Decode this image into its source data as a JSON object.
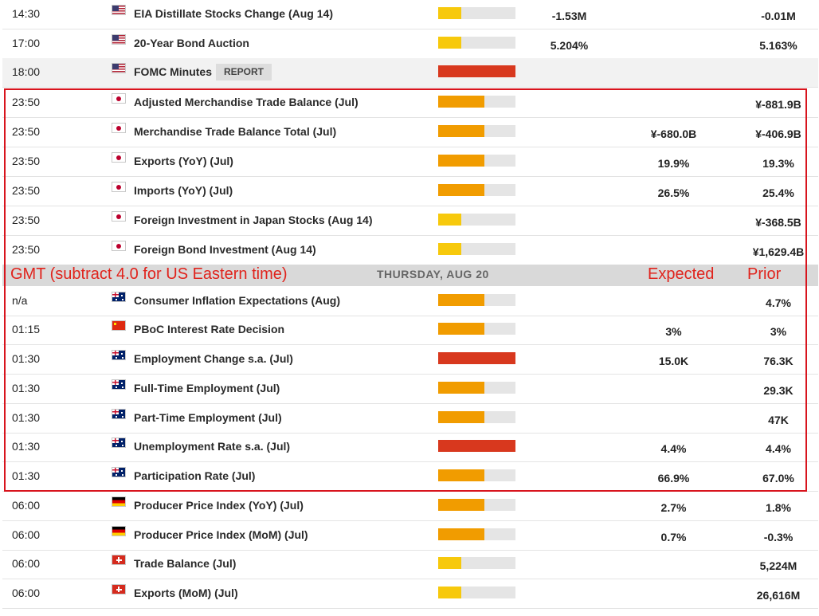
{
  "colors": {
    "importance_high": "#d8381e",
    "importance_medium": "#f19c00",
    "importance_low": "#f7c90c",
    "annotation_red": "#e0231c"
  },
  "events_before": [
    {
      "time": "14:30",
      "flag": "us",
      "name": "EIA Distillate Stocks Change (Aug 14)",
      "tag": "",
      "importance": "low",
      "actual": "-1.53M",
      "forecast": "",
      "prior": "-0.01M"
    },
    {
      "time": "17:00",
      "flag": "us",
      "name": "20-Year Bond Auction",
      "tag": "",
      "importance": "low",
      "actual": "5.204%",
      "forecast": "",
      "prior": "5.163%"
    },
    {
      "time": "18:00",
      "flag": "us",
      "name": "FOMC Minutes",
      "tag": "REPORT",
      "importance": "high",
      "actual": "",
      "forecast": "",
      "prior": ""
    },
    {
      "time": "23:50",
      "flag": "jp",
      "name": "Adjusted Merchandise Trade Balance (Jul)",
      "tag": "",
      "importance": "medium",
      "actual": "",
      "forecast": "",
      "prior": "¥-881.9B"
    },
    {
      "time": "23:50",
      "flag": "jp",
      "name": "Merchandise Trade Balance Total (Jul)",
      "tag": "",
      "importance": "medium",
      "actual": "",
      "forecast": "¥-680.0B",
      "prior": "¥-406.9B"
    },
    {
      "time": "23:50",
      "flag": "jp",
      "name": "Exports (YoY) (Jul)",
      "tag": "",
      "importance": "medium",
      "actual": "",
      "forecast": "19.9%",
      "prior": "19.3%"
    },
    {
      "time": "23:50",
      "flag": "jp",
      "name": "Imports (YoY) (Jul)",
      "tag": "",
      "importance": "medium",
      "actual": "",
      "forecast": "26.5%",
      "prior": "25.4%"
    },
    {
      "time": "23:50",
      "flag": "jp",
      "name": "Foreign Investment in Japan Stocks (Aug 14)",
      "tag": "",
      "importance": "low",
      "actual": "",
      "forecast": "",
      "prior": "¥-368.5B"
    },
    {
      "time": "23:50",
      "flag": "jp",
      "name": "Foreign Bond Investment (Aug 14)",
      "tag": "",
      "importance": "low",
      "actual": "",
      "forecast": "",
      "prior": "¥1,629.4B"
    }
  ],
  "divider": {
    "note": "GMT (subtract 4.0 for US Eastern time)",
    "date": "THURSDAY, AUG 20",
    "expected_label": "Expected",
    "prior_label": "Prior"
  },
  "events_after": [
    {
      "time": "n/a",
      "flag": "au",
      "name": "Consumer Inflation Expectations (Aug)",
      "tag": "",
      "importance": "medium",
      "actual": "",
      "forecast": "",
      "prior": "4.7%"
    },
    {
      "time": "01:15",
      "flag": "cn",
      "name": "PBoC Interest Rate Decision",
      "tag": "",
      "importance": "medium",
      "actual": "",
      "forecast": "3%",
      "prior": "3%"
    },
    {
      "time": "01:30",
      "flag": "au",
      "name": "Employment Change s.a. (Jul)",
      "tag": "",
      "importance": "high",
      "actual": "",
      "forecast": "15.0K",
      "prior": "76.3K"
    },
    {
      "time": "01:30",
      "flag": "au",
      "name": "Full-Time Employment (Jul)",
      "tag": "",
      "importance": "medium",
      "actual": "",
      "forecast": "",
      "prior": "29.3K"
    },
    {
      "time": "01:30",
      "flag": "au",
      "name": "Part-Time Employment (Jul)",
      "tag": "",
      "importance": "medium",
      "actual": "",
      "forecast": "",
      "prior": "47K"
    },
    {
      "time": "01:30",
      "flag": "au",
      "name": "Unemployment Rate s.a. (Jul)",
      "tag": "",
      "importance": "high",
      "actual": "",
      "forecast": "4.4%",
      "prior": "4.4%"
    },
    {
      "time": "01:30",
      "flag": "au",
      "name": "Participation Rate (Jul)",
      "tag": "",
      "importance": "medium",
      "actual": "",
      "forecast": "66.9%",
      "prior": "67.0%"
    },
    {
      "time": "06:00",
      "flag": "de",
      "name": "Producer Price Index (YoY) (Jul)",
      "tag": "",
      "importance": "medium",
      "actual": "",
      "forecast": "2.7%",
      "prior": "1.8%"
    },
    {
      "time": "06:00",
      "flag": "de",
      "name": "Producer Price Index (MoM) (Jul)",
      "tag": "",
      "importance": "medium",
      "actual": "",
      "forecast": "0.7%",
      "prior": "-0.3%"
    },
    {
      "time": "06:00",
      "flag": "ch",
      "name": "Trade Balance (Jul)",
      "tag": "",
      "importance": "low",
      "actual": "",
      "forecast": "",
      "prior": "5,224M"
    },
    {
      "time": "06:00",
      "flag": "ch",
      "name": "Exports (MoM) (Jul)",
      "tag": "",
      "importance": "low",
      "actual": "",
      "forecast": "",
      "prior": "26,616M"
    }
  ]
}
